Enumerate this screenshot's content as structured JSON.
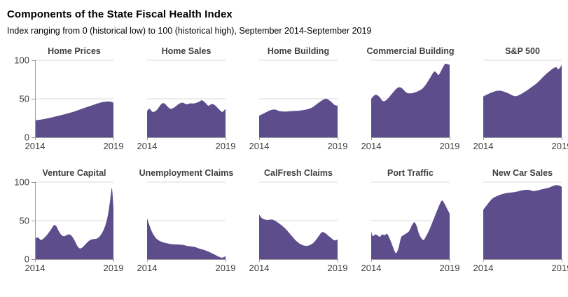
{
  "header": {
    "title": "Components of the State Fiscal Health Index",
    "subtitle": "Index ranging from 0 (historical low) to 100 (historical high), September 2014-September 2019"
  },
  "axes": {
    "y_tick_labels": [
      "100",
      "50",
      "0"
    ],
    "y_tick_values": [
      100,
      50,
      0
    ],
    "gridline_values": [
      100,
      50
    ],
    "x_start_label": "2014",
    "x_end_label": "2019",
    "x_min": 2014,
    "x_max": 2019,
    "y_min": 0,
    "y_max": 100
  },
  "colors": {
    "area": "#5E4D8C",
    "grid": "#d9d9d9",
    "axis": "#9b9b9b",
    "text": "#404040",
    "title_text": "#3f3f3f"
  },
  "chart_data": [
    {
      "type": "area",
      "title": "Home Prices",
      "ylim": [
        0,
        100
      ],
      "x": [
        2014,
        2014.5,
        2015,
        2015.5,
        2016,
        2016.5,
        2017,
        2017.5,
        2018,
        2018.4,
        2018.75,
        2019
      ],
      "values": [
        22,
        23.5,
        25.5,
        28,
        30.5,
        33.5,
        37,
        40.5,
        44,
        46,
        46.5,
        45
      ]
    },
    {
      "type": "area",
      "title": "Home Sales",
      "ylim": [
        0,
        100
      ],
      "x": [
        2014,
        2014.15,
        2014.35,
        2014.6,
        2014.9,
        2015.1,
        2015.3,
        2015.5,
        2015.75,
        2016,
        2016.25,
        2016.5,
        2016.75,
        2017,
        2017.3,
        2017.5,
        2017.7,
        2017.9,
        2018.1,
        2018.3,
        2018.6,
        2018.8,
        2019
      ],
      "values": [
        34,
        37,
        33,
        35,
        43,
        44,
        40,
        37,
        39,
        43,
        45,
        43,
        44,
        44,
        46,
        48,
        45,
        41,
        43,
        42,
        36,
        33,
        37
      ]
    },
    {
      "type": "area",
      "title": "Home Building",
      "ylim": [
        0,
        100
      ],
      "x": [
        2014,
        2014.3,
        2014.7,
        2015,
        2015.3,
        2015.7,
        2016,
        2016.5,
        2017,
        2017.4,
        2017.8,
        2018.1,
        2018.3,
        2018.6,
        2018.8,
        2019
      ],
      "values": [
        28,
        31,
        35,
        36,
        34,
        33.5,
        34,
        34.5,
        36,
        39,
        45,
        49,
        50,
        46,
        42,
        41
      ]
    },
    {
      "type": "area",
      "title": "Commercial Building",
      "ylim": [
        0,
        100
      ],
      "x": [
        2014,
        2014.25,
        2014.5,
        2014.75,
        2015,
        2015.3,
        2015.6,
        2015.8,
        2016,
        2016.25,
        2016.5,
        2016.75,
        2017,
        2017.25,
        2017.5,
        2017.75,
        2018,
        2018.15,
        2018.3,
        2018.5,
        2018.7,
        2018.85,
        2019
      ],
      "values": [
        50,
        55,
        53,
        47,
        49,
        56,
        63,
        65,
        63,
        58,
        57,
        58,
        60,
        63,
        69,
        77,
        85,
        84,
        81,
        88,
        95,
        95,
        94
      ]
    },
    {
      "type": "area",
      "title": "S&P 500",
      "ylim": [
        0,
        100
      ],
      "x": [
        2014,
        2014.4,
        2014.8,
        2015,
        2015.2,
        2015.6,
        2015.9,
        2016.1,
        2016.4,
        2016.8,
        2017,
        2017.4,
        2017.8,
        2018,
        2018.3,
        2018.5,
        2018.65,
        2018.8,
        2019
      ],
      "values": [
        53,
        57,
        60,
        60.5,
        60,
        57,
        54,
        53.5,
        56,
        61,
        64,
        70,
        78,
        82,
        87,
        90,
        91,
        88.5,
        94
      ]
    },
    {
      "type": "area",
      "title": "Venture Capital",
      "ylim": [
        0,
        100
      ],
      "x": [
        2014,
        2014.2,
        2014.4,
        2014.7,
        2015,
        2015.2,
        2015.35,
        2015.5,
        2015.7,
        2015.9,
        2016.1,
        2016.3,
        2016.5,
        2016.7,
        2016.85,
        2017,
        2017.2,
        2017.45,
        2017.7,
        2017.9,
        2018.1,
        2018.3,
        2018.5,
        2018.65,
        2018.8,
        2018.9,
        2019
      ],
      "values": [
        27,
        28,
        25,
        30,
        38,
        44,
        43,
        37,
        31,
        30,
        32,
        31,
        25,
        17,
        14,
        15,
        19,
        24,
        26,
        26.5,
        29,
        35,
        45,
        58,
        78,
        92,
        67
      ]
    },
    {
      "type": "area",
      "title": "Unemployment Claims",
      "ylim": [
        0,
        100
      ],
      "x": [
        2014,
        2014.15,
        2014.3,
        2014.5,
        2014.7,
        2015,
        2015.3,
        2015.6,
        2016,
        2016.3,
        2016.6,
        2017,
        2017.3,
        2017.7,
        2018,
        2018.3,
        2018.6,
        2018.8,
        2019
      ],
      "values": [
        53,
        44,
        36,
        29,
        25,
        22,
        20.5,
        19.5,
        19,
        18.5,
        17,
        16,
        14,
        11.5,
        9,
        6,
        3,
        2,
        4
      ]
    },
    {
      "type": "area",
      "title": "CalFresh Claims",
      "ylim": [
        0,
        100
      ],
      "x": [
        2014,
        2014.2,
        2014.5,
        2014.8,
        2015,
        2015.3,
        2015.7,
        2016,
        2016.3,
        2016.6,
        2016.9,
        2017.2,
        2017.5,
        2017.8,
        2018,
        2018.2,
        2018.5,
        2018.75,
        2018.9,
        2019
      ],
      "values": [
        58,
        53,
        51,
        51.5,
        50,
        46,
        39,
        32,
        25,
        20,
        17.5,
        18,
        22,
        30,
        35,
        34,
        29,
        25,
        24.5,
        26
      ]
    },
    {
      "type": "area",
      "title": "Port Traffic",
      "ylim": [
        0,
        100
      ],
      "x": [
        2014,
        2014.1,
        2014.25,
        2014.4,
        2014.55,
        2014.7,
        2014.85,
        2015,
        2015.15,
        2015.35,
        2015.5,
        2015.6,
        2015.75,
        2015.9,
        2016.05,
        2016.2,
        2016.4,
        2016.6,
        2016.75,
        2016.9,
        2017.05,
        2017.2,
        2017.35,
        2017.5,
        2017.7,
        2017.9,
        2018.1,
        2018.3,
        2018.5,
        2018.65,
        2018.8,
        2019
      ],
      "values": [
        36,
        30,
        32,
        31,
        29,
        32,
        31,
        33,
        28,
        18,
        10,
        8,
        15,
        28,
        31,
        33,
        36,
        44,
        48,
        43,
        33,
        27,
        25,
        30,
        38,
        48,
        58,
        68,
        76,
        73,
        67,
        59
      ]
    },
    {
      "type": "area",
      "title": "New Car Sales",
      "ylim": [
        0,
        100
      ],
      "x": [
        2014,
        2014.3,
        2014.6,
        2015,
        2015.4,
        2015.8,
        2016.2,
        2016.5,
        2016.8,
        2017,
        2017.2,
        2017.5,
        2017.8,
        2018.2,
        2018.5,
        2018.75,
        2018.9,
        2019
      ],
      "values": [
        64,
        72,
        79,
        83,
        85.5,
        86.5,
        88,
        89.5,
        90,
        89.5,
        88.5,
        89.5,
        91,
        93,
        95.5,
        96,
        95,
        94
      ]
    }
  ]
}
